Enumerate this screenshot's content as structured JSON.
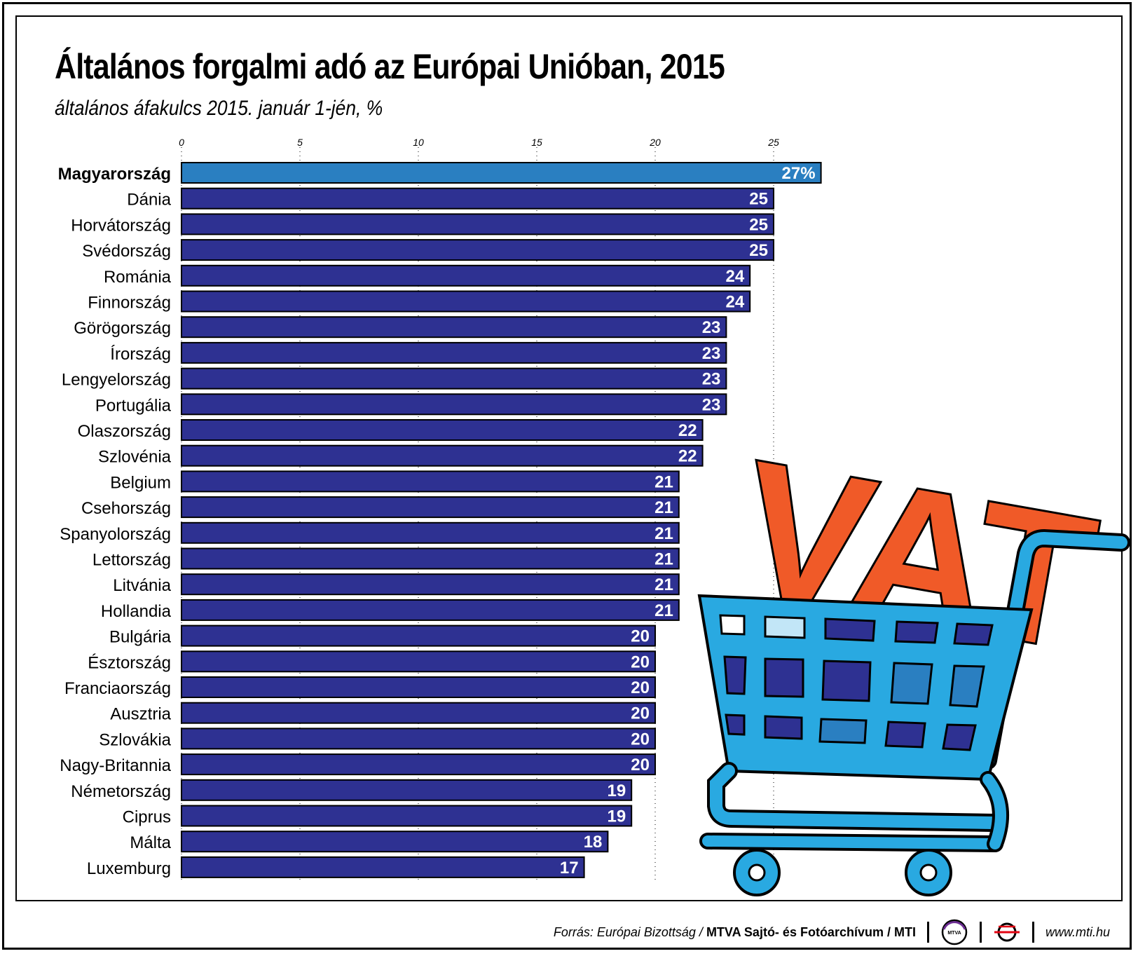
{
  "title": "Általános forgalmi adó az Európai Unióban, 2015",
  "subtitle": "általános áfakulcs 2015. január 1-jén, %",
  "chart_data": {
    "type": "bar",
    "orientation": "horizontal",
    "xlim": [
      0,
      27
    ],
    "ticks": [
      0,
      5,
      10,
      15,
      20,
      25
    ],
    "tick_labels": [
      "0",
      "5",
      "10",
      "15",
      "20",
      "25"
    ],
    "highlight_color": "#2a7fc1",
    "bar_color": "#2e3192",
    "categories": [
      "Magyarország",
      "Dánia",
      "Horvátország",
      "Svédország",
      "Románia",
      "Finnország",
      "Görögország",
      "Írország",
      "Lengyelország",
      "Portugália",
      "Olaszország",
      "Szlovénia",
      "Belgium",
      "Csehország",
      "Spanyolország",
      "Lettország",
      "Litvánia",
      "Hollandia",
      "Bulgária",
      "Észtország",
      "Franciaország",
      "Ausztria",
      "Szlovákia",
      "Nagy-Britannia",
      "Németország",
      "Ciprus",
      "Málta",
      "Luxemburg"
    ],
    "values": [
      27,
      25,
      25,
      25,
      24,
      24,
      23,
      23,
      23,
      23,
      22,
      22,
      21,
      21,
      21,
      21,
      21,
      21,
      20,
      20,
      20,
      20,
      20,
      20,
      19,
      19,
      18,
      17
    ],
    "value_labels": [
      "27%",
      "25",
      "25",
      "25",
      "24",
      "24",
      "23",
      "23",
      "23",
      "23",
      "22",
      "22",
      "21",
      "21",
      "21",
      "21",
      "21",
      "21",
      "20",
      "20",
      "20",
      "20",
      "20",
      "20",
      "19",
      "19",
      "18",
      "17"
    ],
    "highlighted": "Magyarország"
  },
  "illustration": {
    "text": "VAT",
    "icon": "shopping-cart-icon",
    "cart_color": "#29a9e1",
    "letters_color": "#f05a28"
  },
  "footer": {
    "source_label": "Forrás: Európai Bizottság /",
    "org": "MTVA Sajtó- és Fotóarchívum / MTI",
    "mtva_logo_text": "MTVA",
    "url": "www.mti.hu"
  }
}
